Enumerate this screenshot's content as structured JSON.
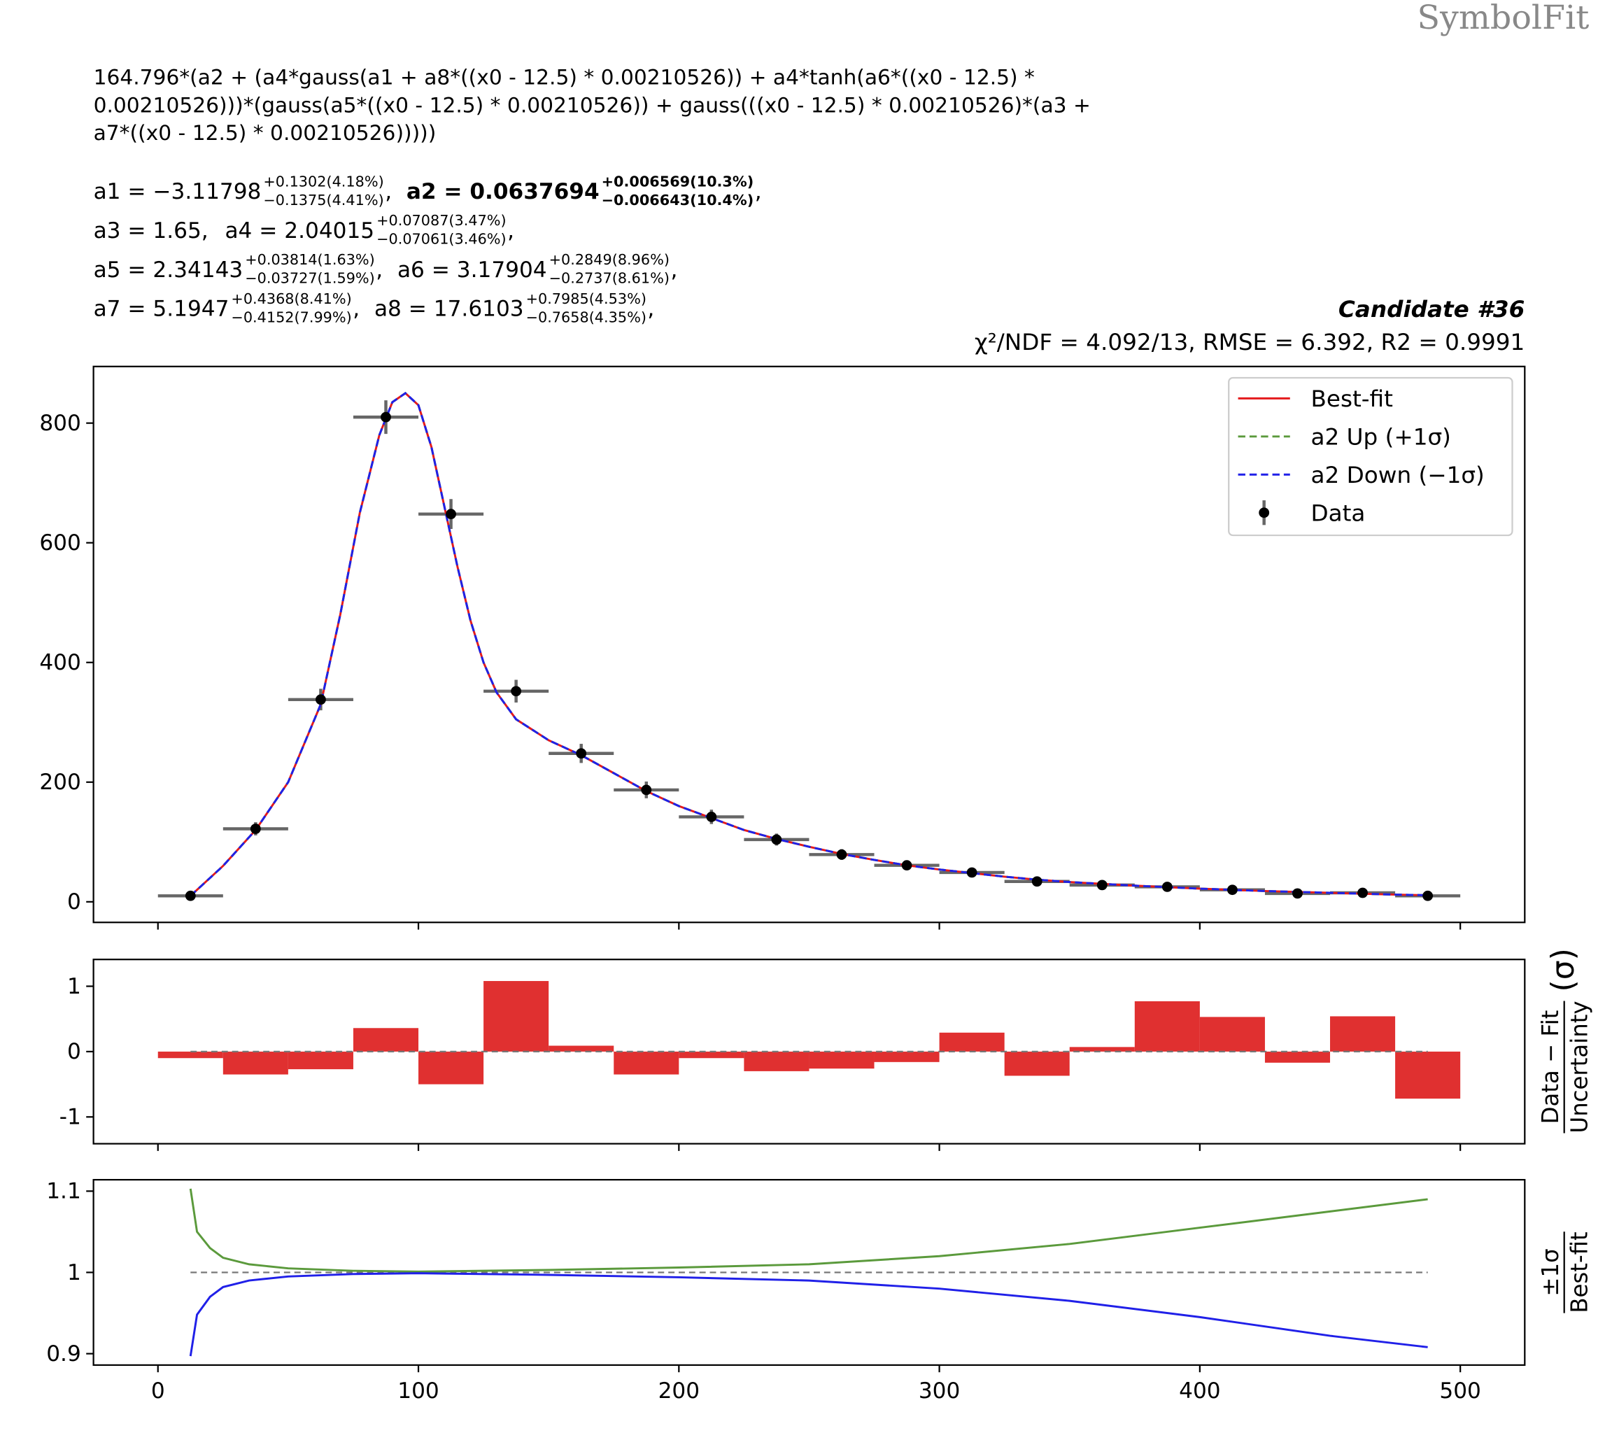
{
  "watermark": "SymbolFit",
  "formula": [
    "164.796*(a2 + (a4*gauss(a1 + a8*((x0 - 12.5) * 0.00210526)) + a4*tanh(a6*((x0 - 12.5) *",
    "0.00210526)))*(gauss(a5*((x0 - 12.5) * 0.00210526)) + gauss(((x0 - 12.5) * 0.00210526)*(a3 +",
    "a7*((x0 - 12.5) * 0.00210526)))))"
  ],
  "parameters": [
    [
      {
        "main": "a1 = −3.11798",
        "up": "+0.1302(4.18%)",
        "down": "−0.1375(4.41%)",
        "tail": ","
      },
      {
        "main": "a2 = 0.0637694",
        "up": "+0.006569(10.3%)",
        "down": "−0.006643(10.4%)",
        "tail": ",",
        "bold": true
      }
    ],
    [
      {
        "main": "a3 = 1.65,"
      },
      {
        "main": "a4 = 2.04015",
        "up": "+0.07087(3.47%)",
        "down": "−0.07061(3.46%)",
        "tail": ","
      }
    ],
    [
      {
        "main": "a5 = 2.34143",
        "up": "+0.03814(1.63%)",
        "down": "−0.03727(1.59%)",
        "tail": ","
      },
      {
        "main": "a6 = 3.17904",
        "up": "+0.2849(8.96%)",
        "down": "−0.2737(8.61%)",
        "tail": ","
      }
    ],
    [
      {
        "main": "a7 = 5.1947",
        "up": "+0.4368(8.41%)",
        "down": "−0.4152(7.99%)",
        "tail": ","
      },
      {
        "main": "a8 = 17.6103",
        "up": "+0.7985(4.53%)",
        "down": "−0.7658(4.35%)",
        "tail": ","
      }
    ]
  ],
  "chart_data": [
    {
      "type": "line",
      "title": "Candidate #36",
      "subtitle": "χ²/NDF = 4.092/13, RMSE = 6.392, R2 = 0.9991",
      "x": [
        12.5,
        25,
        37.5,
        50,
        62.5,
        70,
        77.5,
        85,
        90,
        95,
        100,
        105,
        110,
        115,
        120,
        125,
        130,
        137.5,
        150,
        162.5,
        175,
        187.5,
        200,
        212.5,
        225,
        237.5,
        250,
        262.5,
        275,
        287.5,
        300,
        312.5,
        325,
        337.5,
        350,
        375,
        400,
        425,
        450,
        475,
        487.5
      ],
      "series": [
        {
          "name": "Best-fit",
          "color": "#e41a1c",
          "dash": false,
          "values": [
            10,
            60,
            120,
            200,
            330,
            480,
            650,
            780,
            835,
            850,
            830,
            760,
            660,
            560,
            470,
            400,
            350,
            305,
            270,
            245,
            215,
            185,
            160,
            140,
            120,
            105,
            92,
            80,
            70,
            61,
            54,
            48,
            42,
            37,
            33,
            27,
            22,
            18,
            15,
            12,
            11
          ]
        },
        {
          "name": "a2 Up (+1σ)",
          "color": "#5b9a3c",
          "dash": true,
          "values": [
            10,
            60,
            120,
            200,
            330,
            480,
            650,
            780,
            835,
            850,
            830,
            760,
            660,
            560,
            470,
            400,
            350,
            305,
            270,
            245,
            215,
            185,
            160,
            140,
            120,
            105,
            92,
            80,
            70,
            61,
            54,
            48,
            42,
            37,
            33,
            27,
            22,
            18,
            15,
            12,
            11
          ]
        },
        {
          "name": "a2 Down (−1σ)",
          "color": "#2020e8",
          "dash": true,
          "values": [
            10,
            60,
            120,
            200,
            330,
            480,
            650,
            780,
            835,
            850,
            830,
            760,
            660,
            560,
            470,
            400,
            350,
            305,
            270,
            245,
            215,
            185,
            160,
            140,
            120,
            105,
            92,
            80,
            70,
            61,
            54,
            48,
            42,
            37,
            33,
            27,
            22,
            18,
            15,
            12,
            11
          ]
        }
      ],
      "data": {
        "name": "Data",
        "color": "#000000",
        "errcolor": "#666666",
        "x": [
          12.5,
          37.5,
          62.5,
          87.5,
          112.5,
          137.5,
          162.5,
          187.5,
          212.5,
          237.5,
          262.5,
          287.5,
          312.5,
          337.5,
          362.5,
          387.5,
          412.5,
          437.5,
          462.5,
          487.5
        ],
        "values": [
          10,
          122,
          338,
          810,
          648,
          352,
          248,
          187,
          142,
          104,
          79,
          61,
          49,
          34,
          28,
          25,
          20,
          14,
          15,
          10
        ],
        "errors": [
          3,
          11,
          18,
          28,
          25,
          19,
          16,
          14,
          12,
          10,
          9,
          8,
          7,
          6,
          5,
          5,
          4,
          4,
          4,
          3
        ],
        "xerr": 12.5
      },
      "xlim": [
        -24.75,
        524.75
      ],
      "ylim": [
        -34.4,
        894.6
      ],
      "xticks": [
        0,
        100,
        200,
        300,
        400,
        500
      ],
      "yticks": [
        0,
        200,
        400,
        600,
        800
      ],
      "xtick_labels": false,
      "legend": "upper right"
    },
    {
      "type": "histogram",
      "bins": [
        0,
        25,
        50,
        75,
        100,
        125,
        150,
        175,
        200,
        225,
        250,
        275,
        300,
        325,
        350,
        375,
        400,
        425,
        450,
        475,
        500
      ],
      "values": [
        -0.1,
        -0.35,
        -0.27,
        0.36,
        -0.5,
        1.08,
        0.09,
        -0.35,
        -0.1,
        -0.3,
        -0.26,
        -0.16,
        0.29,
        -0.37,
        0.07,
        0.77,
        0.53,
        -0.17,
        0.54,
        -0.72
      ],
      "color": "#e03030",
      "ref_line": 0,
      "ylabel_num": "Data − Fit",
      "ylabel_den": "Uncertainty",
      "ylabel_unit": "(σ)",
      "xlim": [
        -24.75,
        524.75
      ],
      "ylim": [
        -1.41,
        1.41
      ],
      "xticks": [
        0,
        100,
        200,
        300,
        400,
        500
      ],
      "yticks": [
        -1,
        0,
        1
      ],
      "xtick_labels": false
    },
    {
      "type": "line",
      "x": [
        12.5,
        15,
        20,
        25,
        35,
        50,
        75,
        100,
        150,
        200,
        250,
        300,
        350,
        400,
        450,
        487.5
      ],
      "series": [
        {
          "name": "a2 Up (+1σ)",
          "color": "#5b9a3c",
          "dash": false,
          "values": [
            1.103,
            1.05,
            1.03,
            1.018,
            1.01,
            1.005,
            1.002,
            1.001,
            1.003,
            1.006,
            1.01,
            1.02,
            1.035,
            1.055,
            1.075,
            1.09
          ]
        },
        {
          "name": "a2 Down (−1σ)",
          "color": "#2020e8",
          "dash": false,
          "values": [
            0.897,
            0.948,
            0.97,
            0.982,
            0.99,
            0.995,
            0.998,
            0.999,
            0.997,
            0.994,
            0.99,
            0.98,
            0.965,
            0.945,
            0.922,
            0.908
          ]
        }
      ],
      "ref_line": 1,
      "ylabel_num": "±1σ",
      "ylabel_den": "Best-fit",
      "xlim": [
        -24.75,
        524.75
      ],
      "ylim": [
        0.886,
        1.114
      ],
      "xticks": [
        0,
        100,
        200,
        300,
        400,
        500
      ],
      "yticks": [
        0.9,
        1,
        1.1
      ],
      "xtick_labels": true
    }
  ]
}
